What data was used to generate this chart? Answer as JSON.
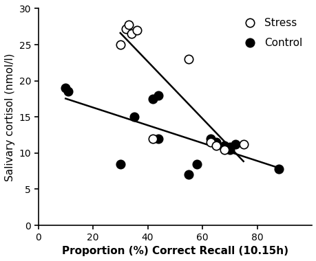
{
  "stress_x": [
    30,
    32,
    33,
    34,
    36,
    42,
    55,
    63,
    65,
    68,
    75
  ],
  "stress_y": [
    25.0,
    27.2,
    27.8,
    26.5,
    27.0,
    12.0,
    23.0,
    11.5,
    11.0,
    10.5,
    11.2
  ],
  "control_x": [
    10,
    11,
    30,
    35,
    42,
    44,
    44,
    55,
    58,
    63,
    65,
    68,
    70,
    70,
    72,
    88
  ],
  "control_y": [
    19.0,
    18.5,
    8.5,
    15.0,
    17.5,
    18.0,
    12.0,
    7.0,
    8.5,
    12.0,
    11.5,
    11.0,
    10.5,
    10.8,
    11.2,
    7.8
  ],
  "stress_color": "white",
  "stress_edgecolor": "black",
  "control_color": "black",
  "control_edgecolor": "black",
  "xlabel": "Proportion (%) Correct Recall (10.15h)",
  "ylabel": "Salivary cortisol (nmol/l)",
  "xlim": [
    0,
    100
  ],
  "ylim": [
    0,
    30
  ],
  "xticks": [
    0,
    20,
    40,
    60,
    80
  ],
  "yticks": [
    0,
    5,
    10,
    15,
    20,
    25,
    30
  ],
  "marker_size": 80,
  "linewidth": 1.8,
  "legend_labels": [
    "Stress",
    "Control"
  ],
  "legend_loc": "upper right"
}
